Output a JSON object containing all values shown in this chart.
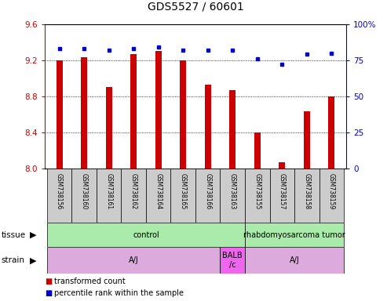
{
  "title": "GDS5527 / 60601",
  "samples": [
    "GSM738156",
    "GSM738160",
    "GSM738161",
    "GSM738162",
    "GSM738164",
    "GSM738165",
    "GSM738166",
    "GSM738163",
    "GSM738155",
    "GSM738157",
    "GSM738158",
    "GSM738159"
  ],
  "bar_values": [
    9.2,
    9.23,
    8.9,
    9.27,
    9.3,
    9.2,
    8.93,
    8.87,
    8.4,
    8.07,
    8.63,
    8.8
  ],
  "dot_values": [
    83,
    83,
    82,
    83,
    84,
    82,
    82,
    82,
    76,
    72,
    79,
    80
  ],
  "ylim_left": [
    8.0,
    9.6
  ],
  "ylim_right": [
    0,
    100
  ],
  "yticks_left": [
    8.0,
    8.4,
    8.8,
    9.2,
    9.6
  ],
  "yticks_right": [
    0,
    25,
    50,
    75,
    100
  ],
  "bar_color": "#cc0000",
  "dot_color": "#0000cc",
  "bar_baseline": 8.0,
  "bar_width": 0.25,
  "tissue_groups": [
    {
      "label": "control",
      "start": 0,
      "end": 8,
      "color": "#aaeaaa"
    },
    {
      "label": "rhabdomyosarcoma tumor",
      "start": 8,
      "end": 12,
      "color": "#aaeaaa"
    }
  ],
  "strain_groups": [
    {
      "label": "A/J",
      "start": 0,
      "end": 7,
      "color": "#ddaadd"
    },
    {
      "label": "BALB\n/c",
      "start": 7,
      "end": 8,
      "color": "#ee66ee"
    },
    {
      "label": "A/J",
      "start": 8,
      "end": 12,
      "color": "#ddaadd"
    }
  ],
  "background_color": "#ffffff",
  "left_axis_color": "#cc0000",
  "right_axis_color": "#0000cc",
  "label_fontsize": 7,
  "tick_fontsize": 7.5,
  "title_fontsize": 10,
  "sample_fontsize": 5.5
}
